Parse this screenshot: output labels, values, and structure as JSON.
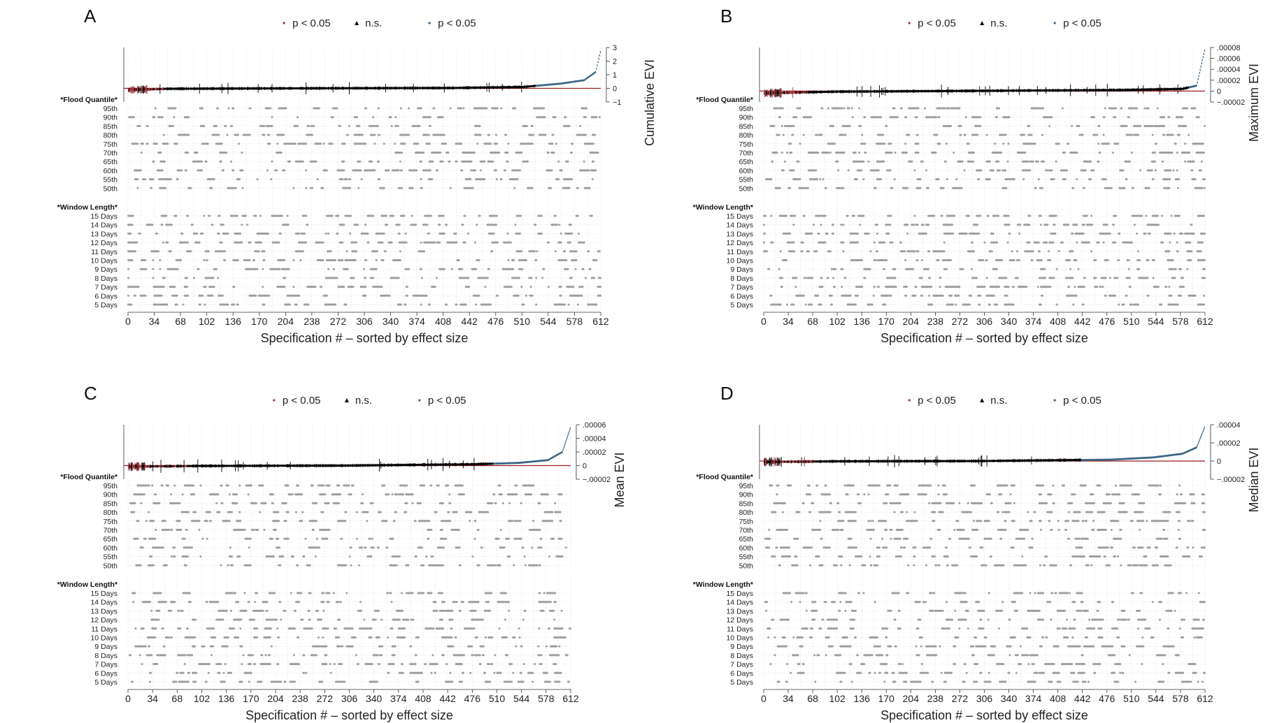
{
  "colors": {
    "significant_negative": "#a8323a",
    "not_significant": "#000000",
    "significant_positive": "#3b6685",
    "indicator_dot": "#9e9e9e",
    "zero_line": "#9b1c1c",
    "grid": "#d9d9d9"
  },
  "legend": {
    "items": [
      {
        "marker": "dot",
        "color": "#a8323a",
        "label": "p < 0.05"
      },
      {
        "marker": "triangle",
        "color": "#000000",
        "label": "n.s."
      },
      {
        "marker": "dot",
        "color": "#3b6685",
        "label": "p < 0.05"
      }
    ]
  },
  "shared": {
    "xlabel": "Specification # – sorted by effect size",
    "x_ticks": [
      "0",
      "34",
      "68",
      "102",
      "136",
      "170",
      "204",
      "238",
      "272",
      "306",
      "340",
      "374",
      "408",
      "442",
      "476",
      "510",
      "544",
      "578",
      "612"
    ],
    "n_specifications": 612,
    "flood_quantile_header": "*Flood Quantile*",
    "flood_quantiles": [
      "95th",
      "90th",
      "85th",
      "80th",
      "75th",
      "70th",
      "65th",
      "60th",
      "55th",
      "50th"
    ],
    "window_length_header": "*Window Length*",
    "window_lengths": [
      "15 Days",
      "14 Days",
      "13 Days",
      "12 Days",
      "11 Days",
      "10 Days",
      "9 Days",
      "8 Days",
      "7 Days",
      "6 Days",
      "5 Days"
    ]
  },
  "chart_data": [
    {
      "panel": "A",
      "type": "scatter",
      "ylabel": "Cumulative EVI",
      "y_ticks": [
        "3",
        "2",
        "1",
        "0",
        "−1"
      ],
      "y_tick_values": [
        3,
        2,
        1,
        0,
        -1
      ],
      "ylim": [
        -1,
        3
      ],
      "curve": {
        "lowest": -0.12,
        "values_at_rank": [
          [
            0,
            -0.12
          ],
          [
            50,
            -0.03
          ],
          [
            200,
            0.0
          ],
          [
            420,
            0.03
          ],
          [
            510,
            0.1
          ],
          [
            560,
            0.35
          ],
          [
            590,
            0.6
          ],
          [
            605,
            1.2
          ],
          [
            612,
            2.9
          ]
        ]
      },
      "sig_negative_through_rank": 45,
      "sig_positive_from_rank": 528
    },
    {
      "panel": "B",
      "type": "scatter",
      "ylabel": "Maximum EVI",
      "y_ticks": [
        ".00008",
        ".00006",
        ".00004",
        ".00002",
        "0",
        "−.00002"
      ],
      "y_tick_values": [
        8e-05,
        6e-05,
        4e-05,
        2e-05,
        0,
        -2e-05
      ],
      "ylim": [
        -2e-05,
        8e-05
      ],
      "curve": {
        "lowest": -4e-06,
        "values_at_rank": [
          [
            0,
            -4e-06
          ],
          [
            100,
            -1e-06
          ],
          [
            300,
            5e-07
          ],
          [
            500,
            2e-06
          ],
          [
            580,
            4e-06
          ],
          [
            600,
            1e-05
          ],
          [
            612,
            8e-05
          ]
        ]
      },
      "sig_negative_through_rank": 60,
      "sig_positive_from_rank": 590
    },
    {
      "panel": "C",
      "type": "scatter",
      "ylabel": "Mean EVI",
      "y_ticks": [
        ".00006",
        ".00004",
        ".00002",
        "0",
        "−.00002"
      ],
      "y_tick_values": [
        6e-05,
        4e-05,
        2e-05,
        0,
        -2e-05
      ],
      "ylim": [
        -2e-05,
        6e-05
      ],
      "curve": {
        "lowest": -1.5e-06,
        "values_at_rank": [
          [
            0,
            -1.5e-06
          ],
          [
            100,
            -5e-07
          ],
          [
            300,
            0.0
          ],
          [
            480,
            2e-06
          ],
          [
            540,
            4e-06
          ],
          [
            580,
            8e-06
          ],
          [
            600,
            2e-05
          ],
          [
            612,
            5.8e-05
          ]
        ]
      },
      "sig_negative_through_rank": 80,
      "sig_positive_from_rank": 505
    },
    {
      "panel": "D",
      "type": "scatter",
      "ylabel": "Median EVI",
      "y_ticks": [
        ".00004",
        ".00002",
        "0",
        "−.00002"
      ],
      "y_tick_values": [
        4e-05,
        2e-05,
        0,
        -2e-05
      ],
      "ylim": [
        -2e-05,
        4e-05
      ],
      "curve": {
        "lowest": -1e-06,
        "values_at_rank": [
          [
            0,
            -1e-06
          ],
          [
            100,
            -3e-07
          ],
          [
            300,
            0.0
          ],
          [
            480,
            1.5e-06
          ],
          [
            540,
            4e-06
          ],
          [
            580,
            8e-06
          ],
          [
            600,
            1.5e-05
          ],
          [
            612,
            3.9e-05
          ]
        ]
      },
      "sig_negative_through_rank": 70,
      "sig_positive_from_rank": 440
    }
  ]
}
